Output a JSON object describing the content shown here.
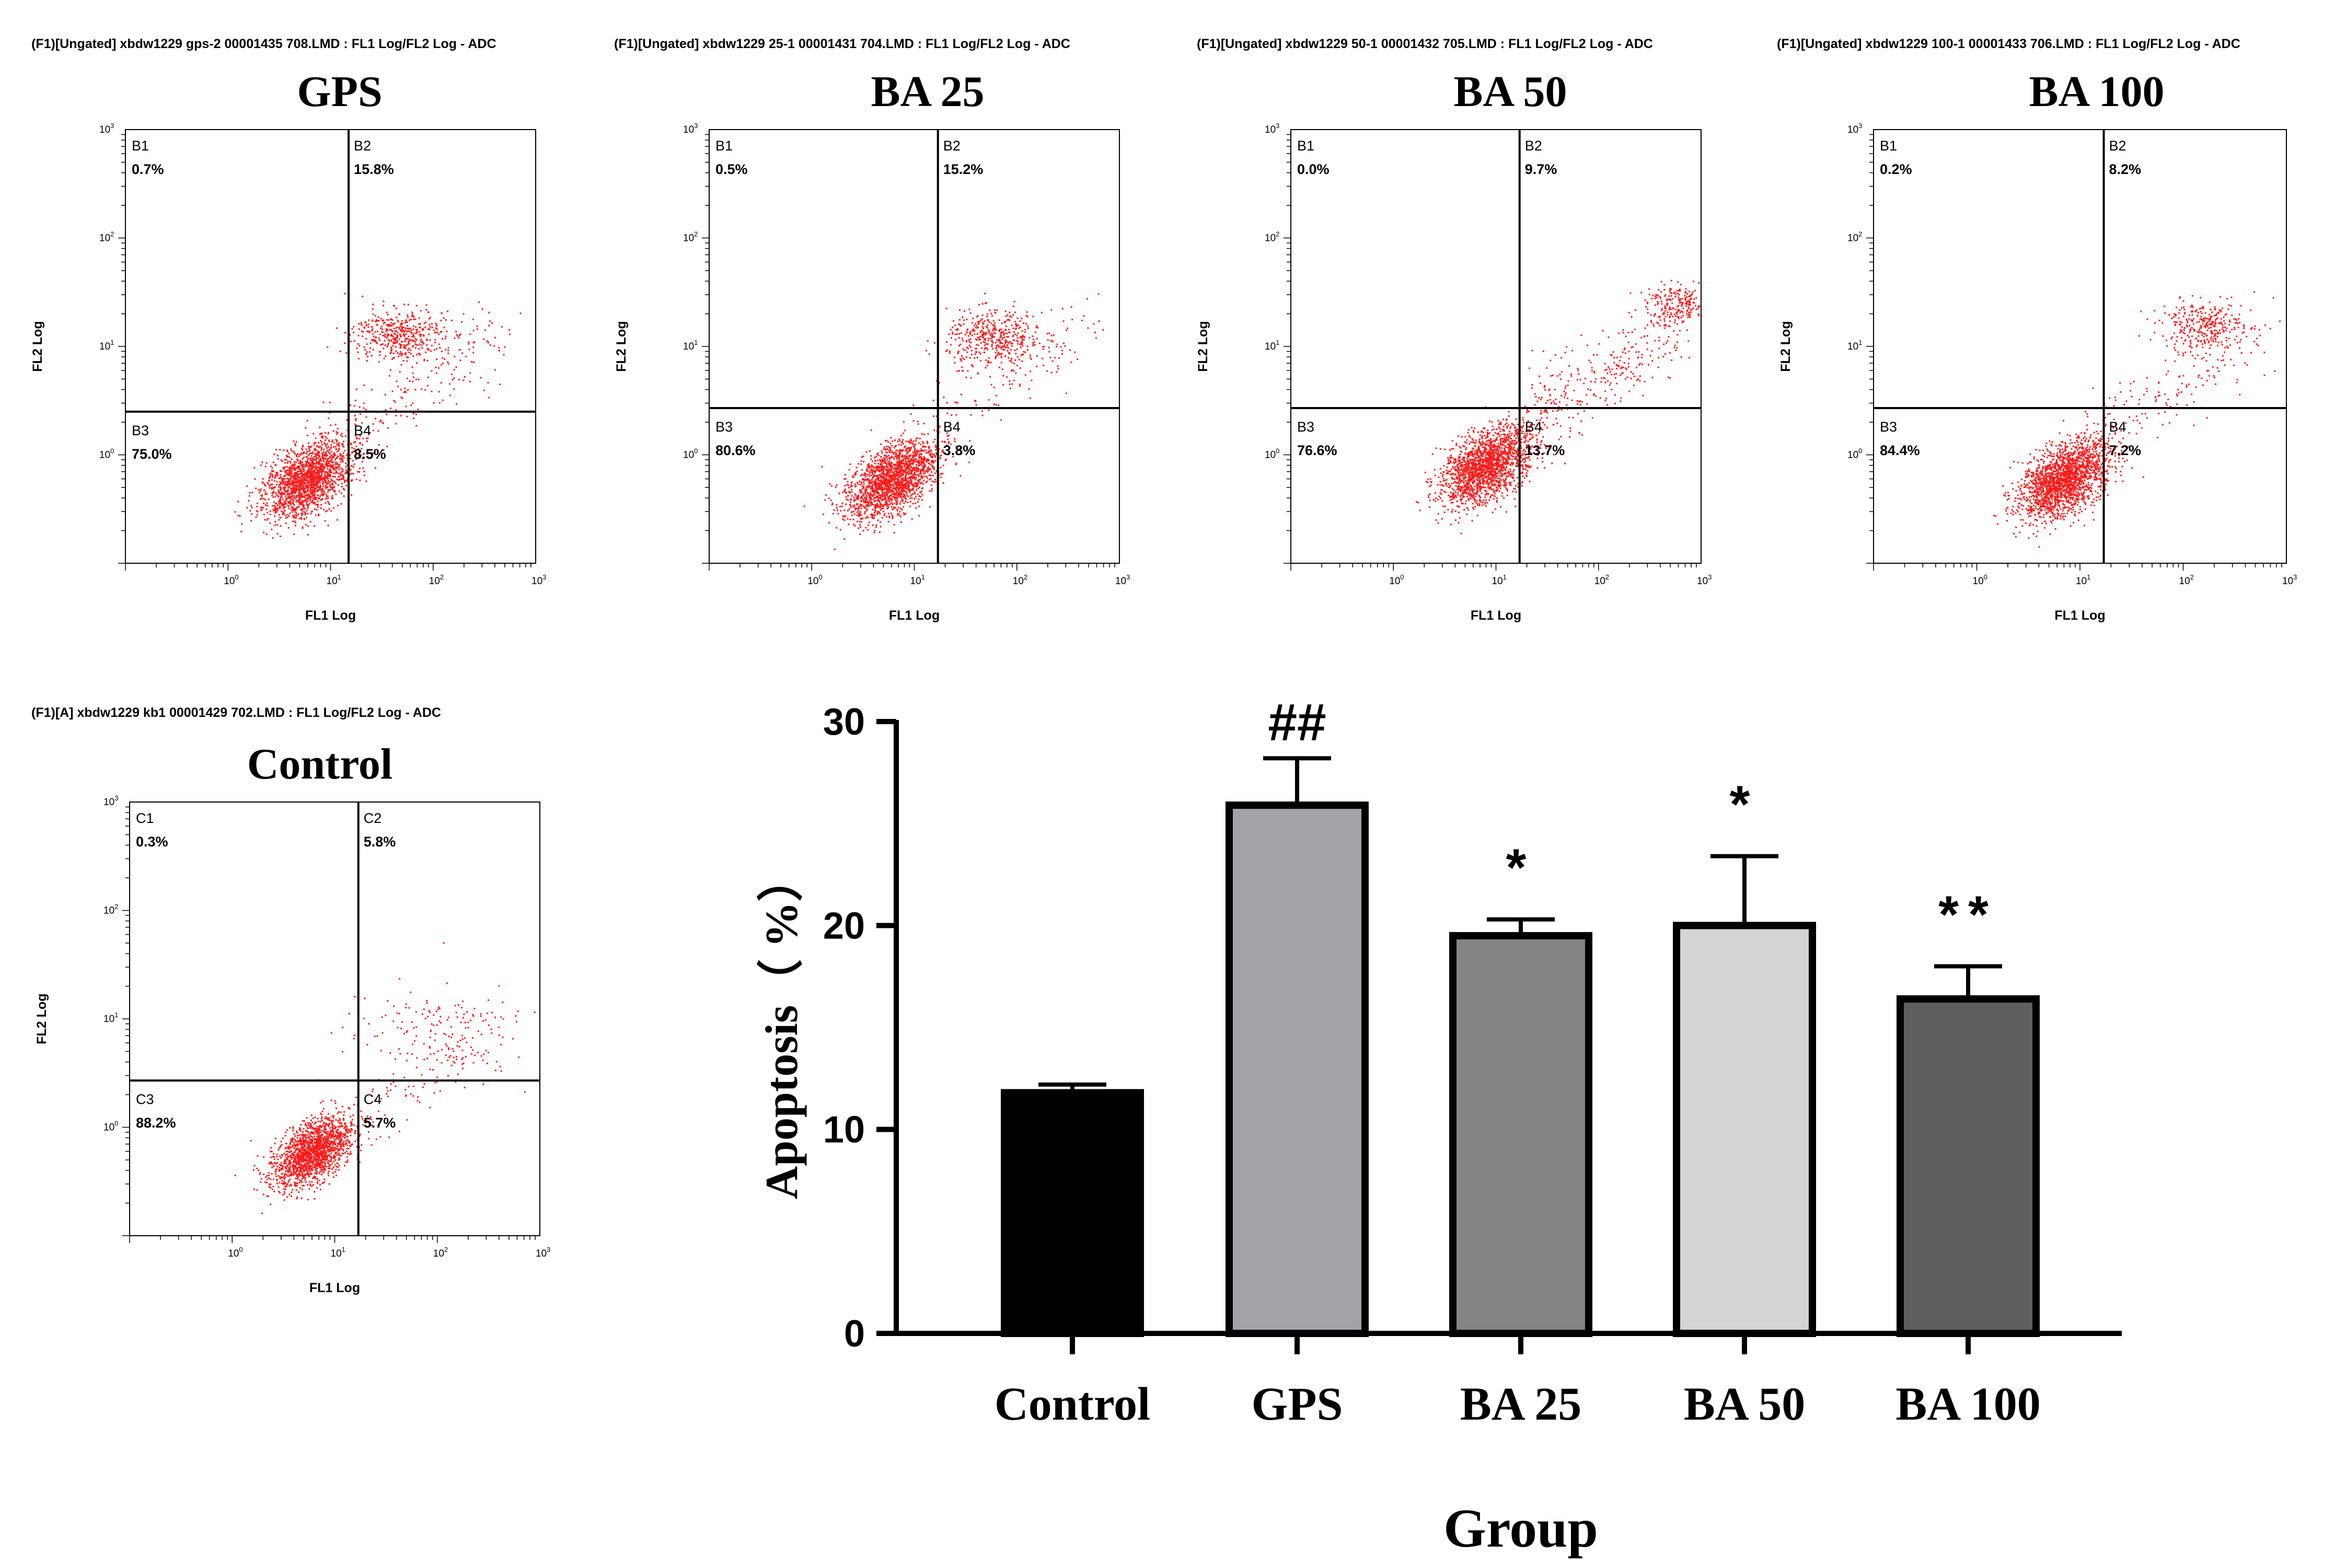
{
  "chart_data": [
    {
      "type": "scatter",
      "header": "(F1)[Ungated] xbdw1229 gps-2 00001435 708.LMD : FL1 Log/FL2 Log - ADC",
      "title": "GPS",
      "xlabel": "FL1 Log",
      "ylabel": "FL2 Log",
      "xlim": [
        0.1,
        1000
      ],
      "ylim": [
        0.1,
        1000
      ],
      "scale": "log",
      "gate": {
        "x": 15,
        "y": 2.5
      },
      "quadrants": [
        {
          "label": "B1",
          "percent": "0.7%"
        },
        {
          "label": "B2",
          "percent": "15.8%"
        },
        {
          "label": "B3",
          "percent": "75.0%"
        },
        {
          "label": "B4",
          "percent": "8.5%"
        }
      ],
      "population_centers": [
        {
          "x": 6,
          "y": 0.6,
          "count": 1800,
          "spread": 0.25
        },
        {
          "x": 45,
          "y": 13,
          "count": 450,
          "spread": 0.17
        },
        {
          "x": 40,
          "y": 3,
          "count": 180,
          "spread": 0.35
        }
      ]
    },
    {
      "type": "scatter",
      "header": "(F1)[Ungated] xbdw1229 25-1 00001431 704.LMD : FL1 Log/FL2 Log - ADC",
      "title": "BA 25",
      "xlabel": "FL1 Log",
      "ylabel": "FL2 Log",
      "xlim": [
        0.1,
        1000
      ],
      "ylim": [
        0.1,
        1000
      ],
      "scale": "log",
      "gate": {
        "x": 17,
        "y": 2.7
      },
      "quadrants": [
        {
          "label": "B1",
          "percent": "0.5%"
        },
        {
          "label": "B2",
          "percent": "15.2%"
        },
        {
          "label": "B3",
          "percent": "80.6%"
        },
        {
          "label": "B4",
          "percent": "3.8%"
        }
      ],
      "population_centers": [
        {
          "x": 6,
          "y": 0.6,
          "count": 1900,
          "spread": 0.25
        },
        {
          "x": 60,
          "y": 12,
          "count": 450,
          "spread": 0.18
        },
        {
          "x": 40,
          "y": 3.5,
          "count": 120,
          "spread": 0.35
        }
      ]
    },
    {
      "type": "scatter",
      "header": "(F1)[Ungated] xbdw1229 50-1 00001432 705.LMD : FL1 Log/FL2 Log - ADC",
      "title": "BA 50",
      "xlabel": "FL1 Log",
      "ylabel": "FL2 Log",
      "xlim": [
        0.1,
        1000
      ],
      "ylim": [
        0.1,
        1000
      ],
      "scale": "log",
      "gate": {
        "x": 17,
        "y": 2.7
      },
      "quadrants": [
        {
          "label": "B1",
          "percent": "0.0%"
        },
        {
          "label": "B2",
          "percent": "9.7%"
        },
        {
          "label": "B3",
          "percent": "76.6%"
        },
        {
          "label": "B4",
          "percent": "13.7%"
        }
      ],
      "population_centers": [
        {
          "x": 8,
          "y": 0.8,
          "count": 1900,
          "spread": 0.25
        },
        {
          "x": 600,
          "y": 25,
          "count": 200,
          "spread": 0.12
        },
        {
          "x": 60,
          "y": 4,
          "count": 350,
          "spread": 0.38
        }
      ]
    },
    {
      "type": "scatter",
      "header": "(F1)[Ungated] xbdw1229 100-1 00001433 706.LMD : FL1 Log/FL2 Log - ADC",
      "title": "BA 100",
      "xlabel": "FL1 Log",
      "ylabel": "FL2 Log",
      "xlim": [
        0.1,
        1000
      ],
      "ylim": [
        0.1,
        1000
      ],
      "scale": "log",
      "gate": {
        "x": 17,
        "y": 2.7
      },
      "quadrants": [
        {
          "label": "B1",
          "percent": "0.2%"
        },
        {
          "label": "B2",
          "percent": "8.2%"
        },
        {
          "label": "B3",
          "percent": "84.4%"
        },
        {
          "label": "B4",
          "percent": "7.2%"
        }
      ],
      "population_centers": [
        {
          "x": 7,
          "y": 0.6,
          "count": 2000,
          "spread": 0.25
        },
        {
          "x": 150,
          "y": 16,
          "count": 300,
          "spread": 0.15
        },
        {
          "x": 40,
          "y": 3,
          "count": 180,
          "spread": 0.35
        }
      ]
    },
    {
      "type": "scatter",
      "header": "(F1)[A] xbdw1229 kb1 00001429 702.LMD : FL1 Log/FL2 Log - ADC",
      "title": "Control",
      "xlabel": "FL1 Log",
      "ylabel": "FL2 Log",
      "xlim": [
        0.1,
        1000
      ],
      "ylim": [
        0.1,
        1000
      ],
      "scale": "log",
      "gate": {
        "x": 17,
        "y": 2.7
      },
      "quadrants": [
        {
          "label": "C1",
          "percent": "0.3%"
        },
        {
          "label": "C2",
          "percent": "5.8%"
        },
        {
          "label": "C3",
          "percent": "88.2%"
        },
        {
          "label": "C4",
          "percent": "5.7%"
        }
      ],
      "population_centers": [
        {
          "x": 6,
          "y": 0.6,
          "count": 1700,
          "spread": 0.22
        },
        {
          "x": 80,
          "y": 8,
          "count": 150,
          "spread": 0.32
        },
        {
          "x": 40,
          "y": 2,
          "count": 100,
          "spread": 0.35
        }
      ]
    },
    {
      "type": "bar",
      "categories": [
        "Control",
        "GPS",
        "BA 25",
        "BA 50",
        "BA 100"
      ],
      "values": [
        11.8,
        25.9,
        19.5,
        20.0,
        16.4
      ],
      "errors": [
        0.4,
        2.3,
        0.8,
        3.4,
        1.6
      ],
      "significance": [
        "",
        "##",
        "*",
        "*",
        "**"
      ],
      "colors": [
        "#000000",
        "#a4a3a8",
        "#858585",
        "#d4d4d4",
        "#5f5f5f"
      ],
      "xlabel": "Group",
      "ylabel": "Apoptosis（ %）",
      "ylim": [
        0,
        30
      ],
      "yticks": [
        "0",
        "10",
        "20",
        "30"
      ]
    }
  ]
}
